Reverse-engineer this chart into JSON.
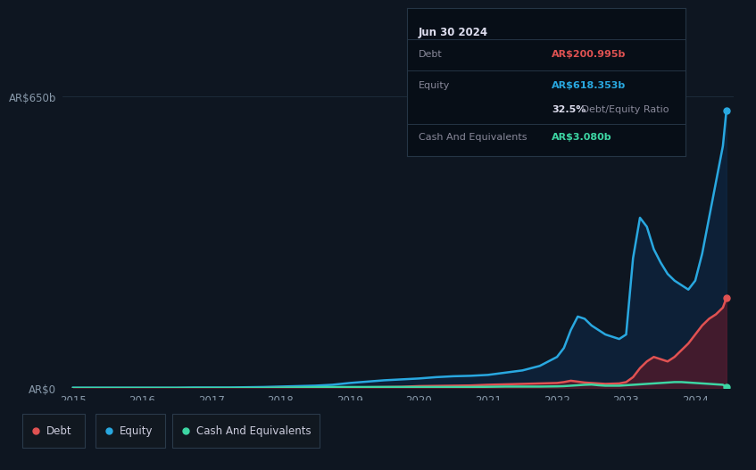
{
  "background_color": "#0e1621",
  "plot_bg_color": "#0e1621",
  "grid_color": "#1e2d3d",
  "ylabel_650": "AR$650b",
  "ylabel_0": "AR$0",
  "x_years": [
    2015.0,
    2015.25,
    2015.5,
    2015.75,
    2016.0,
    2016.25,
    2016.5,
    2016.75,
    2017.0,
    2017.25,
    2017.5,
    2017.75,
    2018.0,
    2018.25,
    2018.5,
    2018.75,
    2019.0,
    2019.25,
    2019.5,
    2019.75,
    2020.0,
    2020.25,
    2020.5,
    2020.75,
    2021.0,
    2021.25,
    2021.5,
    2021.75,
    2022.0,
    2022.1,
    2022.2,
    2022.3,
    2022.4,
    2022.5,
    2022.6,
    2022.7,
    2022.8,
    2022.9,
    2023.0,
    2023.1,
    2023.2,
    2023.3,
    2023.4,
    2023.5,
    2023.6,
    2023.7,
    2023.8,
    2023.9,
    2024.0,
    2024.1,
    2024.2,
    2024.3,
    2024.4,
    2024.45
  ],
  "debt": [
    0.5,
    0.5,
    0.5,
    0.5,
    0.5,
    0.5,
    0.5,
    0.5,
    0.5,
    0.5,
    0.5,
    0.5,
    1.0,
    1.0,
    1.0,
    1.0,
    2.0,
    2.5,
    3.0,
    3.5,
    5.0,
    5.5,
    6.0,
    6.5,
    8.0,
    9.0,
    10.0,
    11.0,
    12.0,
    14.0,
    17.0,
    15.0,
    13.0,
    12.0,
    11.0,
    10.0,
    10.5,
    11.0,
    14.0,
    25.0,
    45.0,
    60.0,
    70.0,
    65.0,
    60.0,
    70.0,
    85.0,
    100.0,
    120.0,
    140.0,
    155.0,
    165.0,
    180.0,
    200.995
  ],
  "equity": [
    1.5,
    1.5,
    1.5,
    1.5,
    1.5,
    1.5,
    1.5,
    2.0,
    2.0,
    2.0,
    2.5,
    3.0,
    4.0,
    5.0,
    6.0,
    8.0,
    12.0,
    15.0,
    18.0,
    20.0,
    22.0,
    25.0,
    27.0,
    28.0,
    30.0,
    35.0,
    40.0,
    50.0,
    70.0,
    90.0,
    130.0,
    160.0,
    155.0,
    140.0,
    130.0,
    120.0,
    115.0,
    110.0,
    120.0,
    290.0,
    380.0,
    360.0,
    310.0,
    280.0,
    255.0,
    240.0,
    230.0,
    220.0,
    240.0,
    300.0,
    380.0,
    460.0,
    540.0,
    618.353
  ],
  "cash": [
    1.0,
    1.0,
    1.0,
    1.0,
    1.0,
    1.0,
    1.0,
    1.0,
    1.0,
    1.0,
    1.0,
    1.0,
    1.5,
    2.0,
    2.5,
    3.0,
    3.0,
    3.0,
    3.0,
    3.0,
    3.0,
    3.0,
    3.0,
    3.0,
    3.5,
    4.0,
    4.0,
    4.0,
    4.5,
    5.0,
    6.0,
    7.0,
    8.0,
    8.5,
    7.0,
    6.0,
    6.0,
    6.0,
    7.0,
    8.0,
    9.0,
    10.0,
    11.0,
    12.0,
    13.0,
    14.0,
    14.0,
    13.0,
    12.0,
    11.0,
    10.0,
    9.0,
    8.0,
    3.08
  ],
  "debt_color": "#e05252",
  "equity_color": "#29a8e0",
  "cash_color": "#3dd6a3",
  "debt_fill_color": "#5a1a2a",
  "equity_fill_color": "#0d2a4a",
  "ylim": [
    0,
    700
  ],
  "xlim_left": 2014.85,
  "xlim_right": 2024.55,
  "tooltip": {
    "date": "Jun 30 2024",
    "debt_label": "Debt",
    "debt_value": "AR$200.995b",
    "equity_label": "Equity",
    "equity_value": "AR$618.353b",
    "ratio_bold": "32.5%",
    "ratio_rest": " Debt/Equity Ratio",
    "cash_label": "Cash And Equivalents",
    "cash_value": "AR$3.080b",
    "debt_value_color": "#e05252",
    "equity_value_color": "#29a8e0",
    "cash_value_color": "#3dd6a3",
    "bg_color": "#070e17",
    "border_color": "#253545",
    "text_color": "#888899",
    "white_color": "#ddddee"
  },
  "legend": [
    {
      "label": "Debt",
      "color": "#e05252"
    },
    {
      "label": "Equity",
      "color": "#29a8e0"
    },
    {
      "label": "Cash And Equivalents",
      "color": "#3dd6a3"
    }
  ],
  "x_tick_labels": [
    "2015",
    "2016",
    "2017",
    "2018",
    "2019",
    "2020",
    "2021",
    "2022",
    "2023",
    "2024"
  ],
  "x_tick_positions": [
    2015,
    2016,
    2017,
    2018,
    2019,
    2020,
    2021,
    2022,
    2023,
    2024
  ]
}
